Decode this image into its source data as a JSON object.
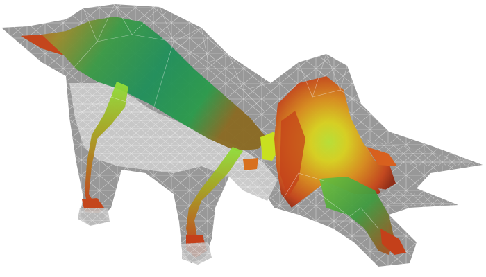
{
  "figure": {
    "subject": "triceratops",
    "render_style": "translucent wireframe mesh with interior surface",
    "palette": {
      "background": "#ffffff",
      "mesh_fill": "#8f8f8f",
      "mesh_fill_light": "#c8c8c8",
      "mesh_line": "#ececec",
      "surface_low": "#c9461f",
      "surface_mid": "#cfcf1e",
      "surface_high": "#2f9a4e",
      "surface_bright": "#8fe03a"
    },
    "parts": [
      "tail",
      "back",
      "belly",
      "front-leg",
      "hind-leg",
      "neck",
      "frill",
      "horns",
      "head"
    ]
  }
}
